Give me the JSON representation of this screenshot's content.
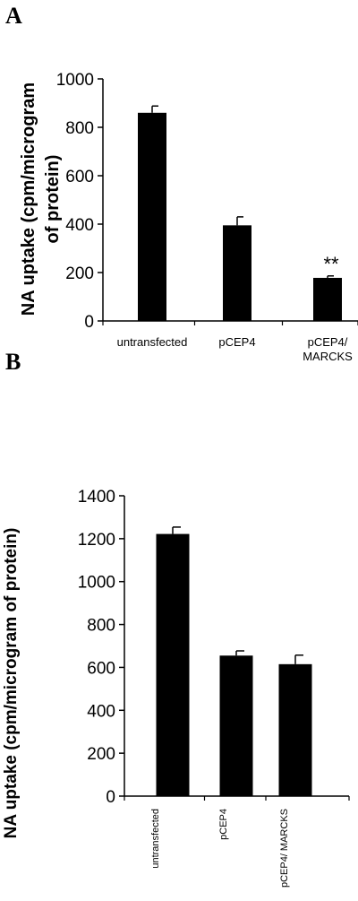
{
  "chart_data": [
    {
      "panel_label": "A",
      "type": "bar",
      "categories": [
        "untransfected",
        "pCEP4",
        "pCEP4/\nMARCKS"
      ],
      "values": [
        860,
        395,
        178
      ],
      "errors": [
        28,
        35,
        8
      ],
      "annotations": [
        "",
        "",
        "**"
      ],
      "ylabel": "NA uptake (cpm/microgram\nof protein)",
      "ylim": [
        0,
        1000
      ],
      "yticks": [
        0,
        200,
        400,
        600,
        800,
        1000
      ],
      "bar_color": "#000000",
      "grid": false,
      "category_label_orientation": "horizontal"
    },
    {
      "panel_label": "B",
      "type": "bar",
      "categories": [
        "untransfected",
        "pCEP4",
        "pCEP4/ MARCKS"
      ],
      "values": [
        1222,
        655,
        615
      ],
      "errors": [
        32,
        22,
        42
      ],
      "annotations": [
        "",
        "",
        ""
      ],
      "ylabel": "NA uptake (cpm/microgram of protein)",
      "ylim": [
        0,
        1400
      ],
      "yticks": [
        0,
        200,
        400,
        600,
        800,
        1000,
        1200,
        1400
      ],
      "bar_color": "#000000",
      "grid": false,
      "category_label_orientation": "vertical"
    }
  ]
}
